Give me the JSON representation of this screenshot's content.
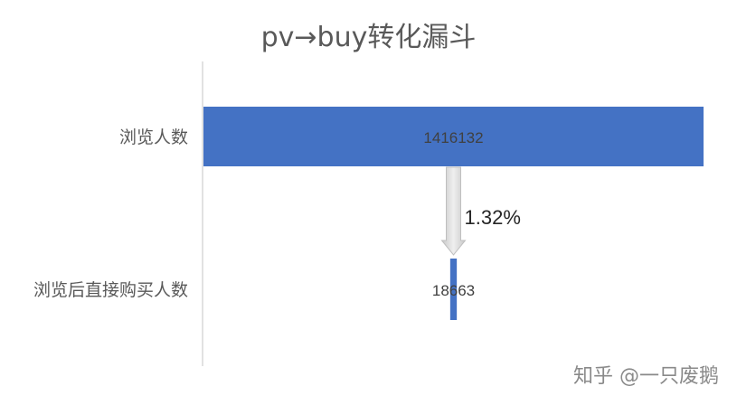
{
  "chart_data": {
    "type": "bar",
    "title": "pv→buy转化漏斗",
    "categories": [
      "浏览人数",
      "浏览后直接购买人数"
    ],
    "values": [
      1416132,
      18663
    ],
    "data_labels": [
      "1416132",
      "18663"
    ],
    "conversion_label": "1.32%",
    "xlim": [
      0,
      1416132
    ],
    "orientation": "horizontal-centered-funnel",
    "bar_color": "#4472C4",
    "arrow_color": "#D9D9D9"
  },
  "watermark": "知乎 @一只废鹅"
}
